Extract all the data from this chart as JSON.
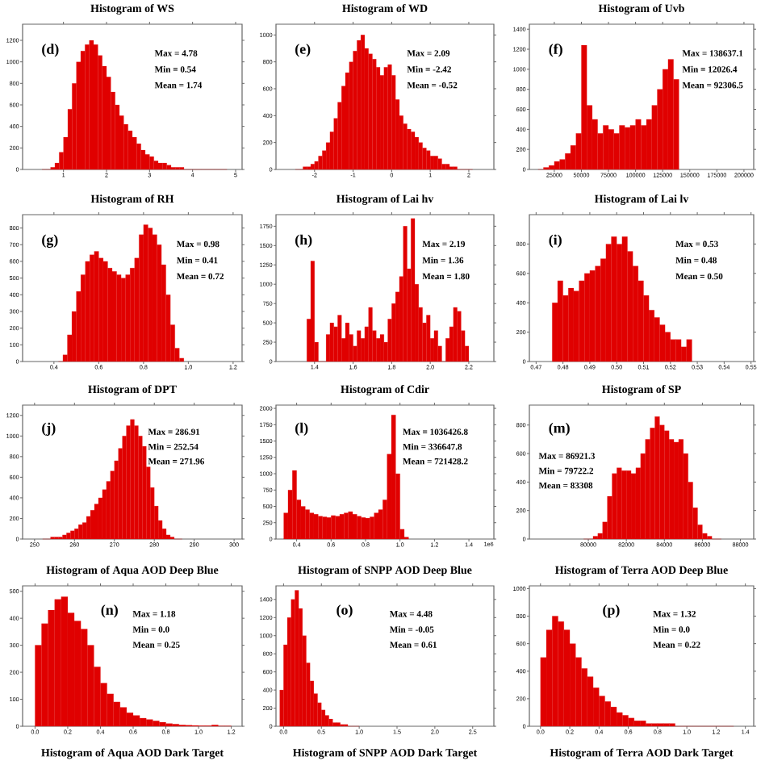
{
  "chart_data": [
    {
      "type": "histogram",
      "title": "Histogram of WS",
      "color": "#e00000",
      "xlim": [
        0.05,
        5.15
      ],
      "ylim": [
        0,
        1350
      ],
      "xticks": [
        1,
        2,
        3,
        4,
        5
      ],
      "yticks": [
        0,
        200,
        400,
        600,
        800,
        1000,
        1200
      ],
      "annotations": [
        "(d)",
        "Max = 4.78",
        "Min = 0.54",
        "Mean = 1.74"
      ],
      "bins": [
        0.5,
        0.6,
        0.7,
        0.8,
        0.9,
        1.0,
        1.1,
        1.2,
        1.3,
        1.4,
        1.5,
        1.6,
        1.7,
        1.8,
        1.9,
        2.0,
        2.1,
        2.2,
        2.3,
        2.4,
        2.5,
        2.6,
        2.7,
        2.8,
        2.9,
        3.0,
        3.1,
        3.2,
        3.3,
        3.4,
        3.5,
        3.6,
        3.7,
        3.8,
        3.9,
        4.0,
        4.1,
        4.2,
        4.3,
        4.4,
        4.5,
        4.6,
        4.7,
        4.8
      ],
      "values": [
        0,
        0,
        20,
        60,
        160,
        300,
        560,
        800,
        1000,
        1100,
        1160,
        1200,
        1160,
        1060,
        960,
        860,
        720,
        600,
        500,
        420,
        360,
        300,
        240,
        180,
        140,
        120,
        80,
        60,
        60,
        40,
        20,
        20,
        20,
        0,
        0,
        0,
        0,
        0,
        0,
        0,
        0,
        0,
        0
      ]
    },
    {
      "type": "histogram",
      "title": "Histogram of WD",
      "color": "#e00000",
      "xlim": [
        -3.0,
        2.65
      ],
      "ylim": [
        0,
        1080
      ],
      "xticks": [
        -2,
        -1,
        0,
        1,
        2
      ],
      "yticks": [
        0,
        200,
        400,
        600,
        800,
        1000
      ],
      "annotations": [
        "(e)",
        "Max = 2.09",
        "Min = -2.42",
        "Mean = -0.52"
      ],
      "bins": [
        -2.5,
        -2.4,
        -2.3,
        -2.2,
        -2.1,
        -2.0,
        -1.9,
        -1.8,
        -1.7,
        -1.6,
        -1.5,
        -1.4,
        -1.3,
        -1.2,
        -1.1,
        -1.0,
        -0.9,
        -0.8,
        -0.7,
        -0.6,
        -0.5,
        -0.4,
        -0.3,
        -0.2,
        -0.1,
        0.0,
        0.1,
        0.2,
        0.3,
        0.4,
        0.5,
        0.6,
        0.7,
        0.8,
        0.9,
        1.0,
        1.1,
        1.2,
        1.3,
        1.4,
        1.5,
        1.6,
        1.7,
        1.8,
        1.9,
        2.0,
        2.1
      ],
      "values": [
        0,
        0,
        20,
        20,
        40,
        60,
        100,
        140,
        200,
        280,
        380,
        500,
        620,
        720,
        800,
        880,
        960,
        1000,
        900,
        860,
        820,
        760,
        700,
        760,
        780,
        700,
        520,
        400,
        340,
        300,
        280,
        240,
        200,
        160,
        140,
        100,
        100,
        80,
        40,
        40,
        20,
        20,
        0,
        0,
        0,
        0
      ]
    },
    {
      "type": "histogram",
      "title": "Histogram of Uvb",
      "color": "#e00000",
      "xlim": [
        2000,
        209000
      ],
      "ylim": [
        0,
        1450
      ],
      "xticks": [
        25000,
        50000,
        75000,
        100000,
        125000,
        150000,
        175000,
        200000
      ],
      "yticks": [
        0,
        200,
        400,
        600,
        800,
        1000,
        1200,
        1400
      ],
      "annotations": [
        "(f)",
        "Max = 138637.1",
        "Min = 12026.4",
        "Mean = 92306.5"
      ],
      "bins": [
        10000,
        15000,
        20000,
        25000,
        30000,
        35000,
        40000,
        45000,
        50000,
        55000,
        60000,
        65000,
        70000,
        75000,
        80000,
        85000,
        90000,
        95000,
        100000,
        105000,
        110000,
        115000,
        120000,
        125000,
        130000,
        135000,
        140000
      ],
      "values": [
        0,
        20,
        40,
        80,
        100,
        160,
        240,
        360,
        1240,
        640,
        500,
        360,
        440,
        400,
        360,
        440,
        420,
        440,
        500,
        440,
        500,
        640,
        800,
        1000,
        1100,
        900
      ]
    },
    {
      "type": "histogram",
      "title": "Histogram of RH",
      "color": "#e00000",
      "xlim": [
        0.26,
        1.24
      ],
      "ylim": [
        0,
        880
      ],
      "xticks": [
        0.4,
        0.6,
        0.8,
        {
          "value": 1.0,
          "label": "1.0"
        },
        1.2
      ],
      "yticks": [
        0,
        100,
        200,
        300,
        400,
        500,
        600,
        700,
        800
      ],
      "annotations": [
        "(g)",
        "Max = 0.98",
        "Min = 0.41",
        "Mean = 0.72"
      ],
      "bins": [
        0.42,
        0.44,
        0.46,
        0.48,
        0.5,
        0.52,
        0.54,
        0.56,
        0.58,
        0.6,
        0.62,
        0.64,
        0.66,
        0.68,
        0.7,
        0.72,
        0.74,
        0.76,
        0.78,
        0.8,
        0.82,
        0.84,
        0.86,
        0.88,
        0.9,
        0.92,
        0.94,
        0.96,
        0.98
      ],
      "values": [
        0,
        40,
        160,
        300,
        420,
        520,
        600,
        640,
        660,
        620,
        600,
        560,
        540,
        520,
        500,
        520,
        560,
        620,
        760,
        820,
        800,
        760,
        700,
        580,
        400,
        220,
        80,
        20
      ]
    },
    {
      "type": "histogram",
      "title": "Histogram of Lai hv",
      "color": "#e00000",
      "xlim": [
        1.2,
        2.33
      ],
      "ylim": [
        0,
        1900
      ],
      "xticks": [
        1.4,
        1.6,
        1.8,
        {
          "value": 2.0,
          "label": "2.0"
        },
        2.2
      ],
      "yticks": [
        0,
        250,
        500,
        750,
        1000,
        1250,
        1500,
        1750
      ],
      "annotations": [
        "(h)",
        "Max = 2.19",
        "Min = 1.36",
        "Mean = 1.80"
      ],
      "bins": [
        1.36,
        1.38,
        1.4,
        1.42,
        1.44,
        1.46,
        1.48,
        1.5,
        1.52,
        1.54,
        1.56,
        1.58,
        1.6,
        1.62,
        1.64,
        1.66,
        1.68,
        1.7,
        1.72,
        1.74,
        1.76,
        1.78,
        1.8,
        1.82,
        1.84,
        1.86,
        1.88,
        1.9,
        1.92,
        1.94,
        1.96,
        1.98,
        2.0,
        2.02,
        2.04,
        2.06,
        2.08,
        2.1,
        2.12,
        2.14,
        2.16,
        2.18,
        2.2
      ],
      "values": [
        550,
        1300,
        250,
        0,
        0,
        350,
        500,
        450,
        600,
        300,
        500,
        350,
        200,
        400,
        300,
        450,
        700,
        400,
        300,
        350,
        250,
        550,
        750,
        900,
        1100,
        1750,
        1200,
        1850,
        1000,
        700,
        500,
        600,
        300,
        400,
        200,
        0,
        300,
        450,
        700,
        650,
        400,
        200
      ]
    },
    {
      "type": "histogram",
      "title": "Histogram of Lai lv",
      "color": "#e00000",
      "xlim": [
        0.4675,
        0.551
      ],
      "ylim": [
        0,
        1000
      ],
      "xticks": [
        0.47,
        0.48,
        0.49,
        {
          "value": 0.5,
          "label": "0.50"
        },
        0.51,
        0.52,
        0.53,
        0.54,
        0.55
      ],
      "yticks": [
        0,
        200,
        400,
        600,
        800
      ],
      "annotations": [
        "(i)",
        "Max = 0.53",
        "Min = 0.48",
        "Mean = 0.50"
      ],
      "bins": [
        0.476,
        0.478,
        0.48,
        0.482,
        0.484,
        0.486,
        0.488,
        0.49,
        0.492,
        0.494,
        0.496,
        0.498,
        0.5,
        0.502,
        0.504,
        0.506,
        0.508,
        0.51,
        0.512,
        0.514,
        0.516,
        0.518,
        0.52,
        0.522,
        0.524,
        0.526,
        0.528
      ],
      "values": [
        400,
        550,
        450,
        500,
        480,
        550,
        600,
        620,
        650,
        700,
        800,
        850,
        800,
        850,
        750,
        650,
        550,
        450,
        350,
        300,
        250,
        200,
        150,
        150,
        100,
        150
      ]
    },
    {
      "type": "histogram",
      "title": "Histogram of DPT",
      "color": "#e00000",
      "xlim": [
        247,
        302
      ],
      "ylim": [
        0,
        1300
      ],
      "xticks": [
        250,
        260,
        270,
        280,
        290,
        300
      ],
      "yticks": [
        0,
        200,
        400,
        600,
        800,
        1000,
        1200
      ],
      "annotations": [
        "(j)",
        "Max = 286.91",
        "Min = 252.54",
        "Mean = 271.96"
      ],
      "bins": [
        252,
        253,
        254,
        255,
        256,
        257,
        258,
        259,
        260,
        261,
        262,
        263,
        264,
        265,
        266,
        267,
        268,
        269,
        270,
        271,
        272,
        273,
        274,
        275,
        276,
        277,
        278,
        279,
        280,
        281,
        282,
        283,
        284,
        285,
        286,
        287
      ],
      "values": [
        0,
        0,
        20,
        20,
        20,
        40,
        60,
        80,
        100,
        140,
        160,
        220,
        280,
        340,
        400,
        480,
        560,
        660,
        760,
        880,
        1000,
        1100,
        1160,
        1100,
        1000,
        900,
        700,
        500,
        320,
        180,
        100,
        40,
        20,
        0,
        0
      ]
    },
    {
      "type": "histogram",
      "title": "Histogram of Cdir",
      "color": "#e00000",
      "xlim": [
        0.28,
        1.545
      ],
      "ylim": [
        0,
        2050
      ],
      "xticks": [
        0.4,
        0.6,
        0.8,
        {
          "value": 1.0,
          "label": "1.0"
        },
        1.2,
        1.4
      ],
      "yticks": [
        0,
        250,
        500,
        750,
        1000,
        1250,
        1500,
        1750,
        2000
      ],
      "xlabel": "1e6",
      "annotations": [
        "(l)",
        "Max = 1036426.8",
        "Min = 336647.8",
        "Mean = 721428.2"
      ],
      "bins": [
        0.325,
        0.35,
        0.375,
        0.4,
        0.425,
        0.45,
        0.475,
        0.5,
        0.525,
        0.55,
        0.575,
        0.6,
        0.625,
        0.65,
        0.675,
        0.7,
        0.725,
        0.75,
        0.775,
        0.8,
        0.825,
        0.85,
        0.875,
        0.9,
        0.925,
        0.95,
        0.975,
        1.0,
        1.025,
        1.05
      ],
      "values": [
        400,
        750,
        1050,
        600,
        500,
        450,
        400,
        380,
        350,
        340,
        330,
        360,
        350,
        380,
        400,
        420,
        380,
        350,
        330,
        320,
        340,
        400,
        450,
        600,
        1300,
        1900,
        1000,
        150,
        30
      ]
    },
    {
      "type": "histogram",
      "title": "Histogram of SP",
      "color": "#e00000",
      "xlim": [
        76900,
        88700
      ],
      "ylim": [
        0,
        940
      ],
      "xticks": [
        80000,
        82000,
        84000,
        86000,
        88000
      ],
      "yticks": [
        0,
        200,
        400,
        600,
        800
      ],
      "annotations": [
        "(m)",
        "Max = 86921.3",
        "Min = 79722.2",
        "Mean = 83308"
      ],
      "bins": [
        79750,
        80000,
        80250,
        80500,
        80750,
        81000,
        81250,
        81500,
        81750,
        82000,
        82250,
        82500,
        82750,
        83000,
        83250,
        83500,
        83750,
        84000,
        84250,
        84500,
        84750,
        85000,
        85250,
        85500,
        85750,
        86000,
        86250,
        86500,
        86750,
        87000
      ],
      "values": [
        0,
        0,
        20,
        40,
        120,
        300,
        460,
        500,
        480,
        480,
        460,
        500,
        600,
        700,
        780,
        860,
        800,
        760,
        700,
        680,
        700,
        600,
        400,
        220,
        100,
        40,
        20,
        0,
        0
      ]
    },
    {
      "type": "histogram",
      "title": "Histogram of Aqua AOD Deep Blue",
      "color": "#e00000",
      "xlim": [
        -0.076,
        1.266
      ],
      "ylim": [
        0,
        520
      ],
      "xticks": [
        {
          "value": 0,
          "label": "0.0"
        },
        0.2,
        0.4,
        0.6,
        0.8,
        {
          "value": 1.0,
          "label": "1.0"
        },
        1.2
      ],
      "yticks": [
        0,
        100,
        200,
        300,
        400,
        500
      ],
      "annotations": [
        "(n)",
        "Max = 1.18",
        "Min = 0.0",
        "Mean = 0.25"
      ],
      "bins": [
        0,
        0.04,
        0.08,
        0.12,
        0.16,
        0.2,
        0.24,
        0.28,
        0.32,
        0.36,
        0.4,
        0.44,
        0.48,
        0.52,
        0.56,
        0.6,
        0.64,
        0.68,
        0.72,
        0.76,
        0.8,
        0.84,
        0.88,
        0.92,
        0.96,
        1.0,
        1.04,
        1.08,
        1.12,
        1.16,
        1.2
      ],
      "values": [
        300,
        380,
        430,
        470,
        480,
        420,
        390,
        360,
        300,
        220,
        160,
        120,
        90,
        70,
        50,
        40,
        30,
        25,
        20,
        15,
        10,
        8,
        5,
        4,
        3,
        2,
        2,
        5,
        1,
        1
      ]
    },
    {
      "type": "histogram",
      "title": "Histogram of SNPP AOD Deep Blue",
      "color": "#e00000",
      "xlim": [
        -0.1,
        2.78
      ],
      "ylim": [
        0,
        1550
      ],
      "xticks": [
        {
          "value": 0,
          "label": "0.0"
        },
        0.5,
        {
          "value": 1.0,
          "label": "1.0"
        },
        1.5,
        {
          "value": 2.0,
          "label": "2.0"
        },
        2.5
      ],
      "yticks": [
        0,
        200,
        400,
        600,
        800,
        1000,
        1200,
        1400
      ],
      "annotations": [
        "(o)",
        "Max = 4.48",
        "Min = -0.05",
        "Mean = 0.61"
      ],
      "bins": [
        -0.05,
        0,
        0.05,
        0.1,
        0.15,
        0.2,
        0.25,
        0.3,
        0.35,
        0.4,
        0.45,
        0.5,
        0.55,
        0.6,
        0.65,
        0.7,
        0.75,
        0.8,
        0.85,
        0.9,
        0.95,
        1.0
      ],
      "values": [
        400,
        900,
        1200,
        1400,
        1500,
        1300,
        1000,
        700,
        500,
        360,
        260,
        180,
        120,
        80,
        40,
        40,
        20,
        20,
        0,
        0,
        0
      ]
    },
    {
      "type": "histogram",
      "title": "Histogram of Terra AOD Deep Blue",
      "color": "#e00000",
      "xlim": [
        -0.076,
        1.457
      ],
      "ylim": [
        0,
        1020
      ],
      "xticks": [
        {
          "value": 0,
          "label": "0.0"
        },
        0.2,
        0.4,
        0.6,
        0.8,
        {
          "value": 1.0,
          "label": "1.0"
        },
        1.2,
        1.4
      ],
      "yticks": [
        0,
        200,
        400,
        600,
        800,
        1000
      ],
      "annotations": [
        "(p)",
        "Max = 1.32",
        "Min = 0.0",
        "Mean = 0.22"
      ],
      "bins": [
        0,
        0.04,
        0.08,
        0.12,
        0.16,
        0.2,
        0.24,
        0.28,
        0.32,
        0.36,
        0.4,
        0.44,
        0.48,
        0.52,
        0.56,
        0.6,
        0.64,
        0.68,
        0.72,
        0.76,
        0.8,
        0.84,
        0.88,
        0.92,
        0.96,
        1.0,
        1.04,
        1.08,
        1.12,
        1.16,
        1.2,
        1.24,
        1.28,
        1.32
      ],
      "values": [
        500,
        700,
        800,
        760,
        700,
        600,
        500,
        420,
        360,
        280,
        220,
        180,
        140,
        100,
        80,
        60,
        40,
        40,
        20,
        20,
        20,
        20,
        20,
        0,
        0,
        0,
        0,
        0,
        0,
        0,
        0,
        0,
        0
      ]
    },
    {
      "type": "other",
      "title": "Histogram of Aqua AOD Dark Target"
    },
    {
      "type": "other",
      "title": "Histogram of SNPP AOD Dark Target"
    },
    {
      "type": "other",
      "title": "Histogram of Terra AOD Dark Target"
    }
  ]
}
